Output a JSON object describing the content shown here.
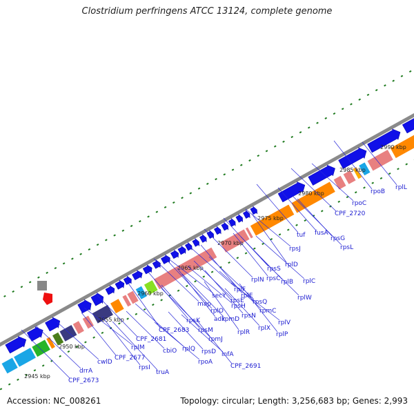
{
  "title": "Clostridium perfringens ATCC 13124, complete genome",
  "footer": {
    "accession": "Accession: NC_008261",
    "summary": "Topology: circular; Length: 3,256,683 bp; Genes: 2,993"
  },
  "ticks": [
    "2945 kbp",
    "2950 kbp",
    "2955 kbp",
    "2960 kbp",
    "2965 kbp",
    "2970 kbp",
    "2975 kbp",
    "2980 kbp",
    "2985 kbp",
    "2990 kbp"
  ],
  "genes": [
    "CPF_2673",
    "drrA",
    "cwlD",
    "rpsI",
    "CPF_2677",
    "rplM",
    "truA",
    "CPF_2681",
    "cbiO",
    "CPF_2683",
    "rplQ",
    "rpoA",
    "rpsK",
    "rpsM",
    "rpsD",
    "rpmJ",
    "map",
    "infA",
    "adk",
    "CPF_2691",
    "secY",
    "rplO",
    "rpmD",
    "rpsE",
    "rplR",
    "rplF",
    "rpsH",
    "rplE",
    "rpsN",
    "rplX",
    "rplN",
    "rpsQ",
    "rpmC",
    "rplP",
    "rpsC",
    "rplV",
    "rpsS",
    "rplB",
    "rplW",
    "rplD",
    "rplC",
    "rpsJ",
    "tuf",
    "fusA",
    "rpsG",
    "rpsL",
    "CPF_2720",
    "rpoC",
    "rpoB",
    "rplL"
  ]
}
